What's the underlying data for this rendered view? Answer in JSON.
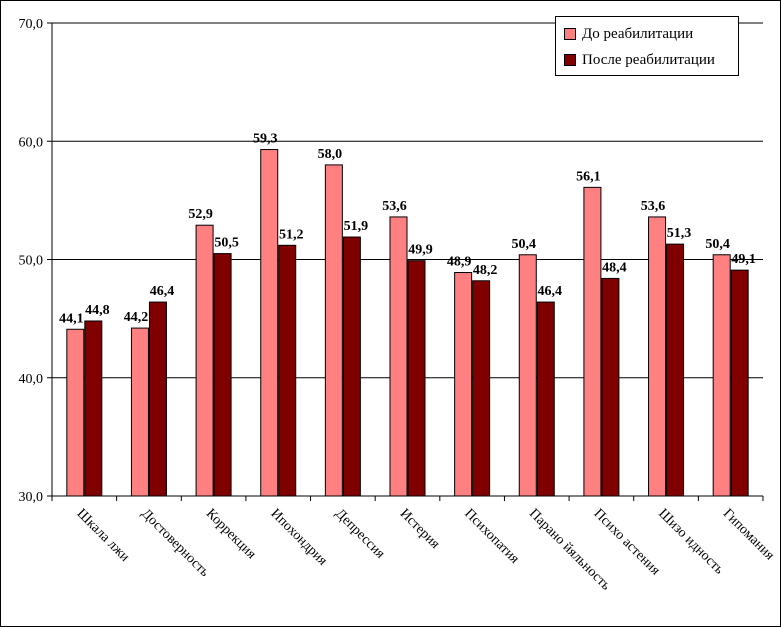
{
  "chart_data": {
    "type": "bar",
    "categories": [
      "Шкала лжи",
      "Достоверность",
      "Коррекция",
      "Ипохондрия",
      "Депрессия",
      "Истерия",
      "Психопатия",
      "Паранойяльность",
      "Психоастения",
      "Шизоидность",
      "Гипомания"
    ],
    "series": [
      {
        "name": "До реабилитации",
        "color": "#ff8080",
        "values": [
          44.1,
          44.2,
          52.9,
          59.3,
          58.0,
          53.6,
          48.9,
          50.4,
          56.1,
          53.6,
          50.4
        ],
        "labels": [
          "44,1",
          "44,2",
          "52,9",
          "59,3",
          "58,0",
          "53,6",
          "48,9",
          "50,4",
          "56,1",
          "53,6",
          "50,4"
        ]
      },
      {
        "name": "После реабилитации",
        "color": "#800000",
        "values": [
          44.8,
          46.4,
          50.5,
          51.2,
          51.9,
          49.9,
          48.2,
          46.4,
          48.4,
          51.3,
          49.1
        ],
        "labels": [
          "44,8",
          "46,4",
          "50,5",
          "51,2",
          "51,9",
          "49,9",
          "48,2",
          "46,4",
          "48,4",
          "51,3",
          "49,1"
        ]
      }
    ],
    "ylim": [
      30,
      70
    ],
    "yticks": [
      30,
      40,
      50,
      60,
      70
    ],
    "ytick_labels": [
      "30,0",
      "40,0",
      "50,0",
      "60,0",
      "70,0"
    ],
    "grid": true,
    "legend_position": "top-right",
    "category_labels": [
      "Шкала лжи",
      "Достоверность",
      "Коррекция",
      "Ипохондрия",
      "Депрессия",
      "Истерия",
      "Психопатия",
      "Парано йяльность",
      "Психо астения",
      "Шизо идность",
      "Гипомания"
    ]
  }
}
